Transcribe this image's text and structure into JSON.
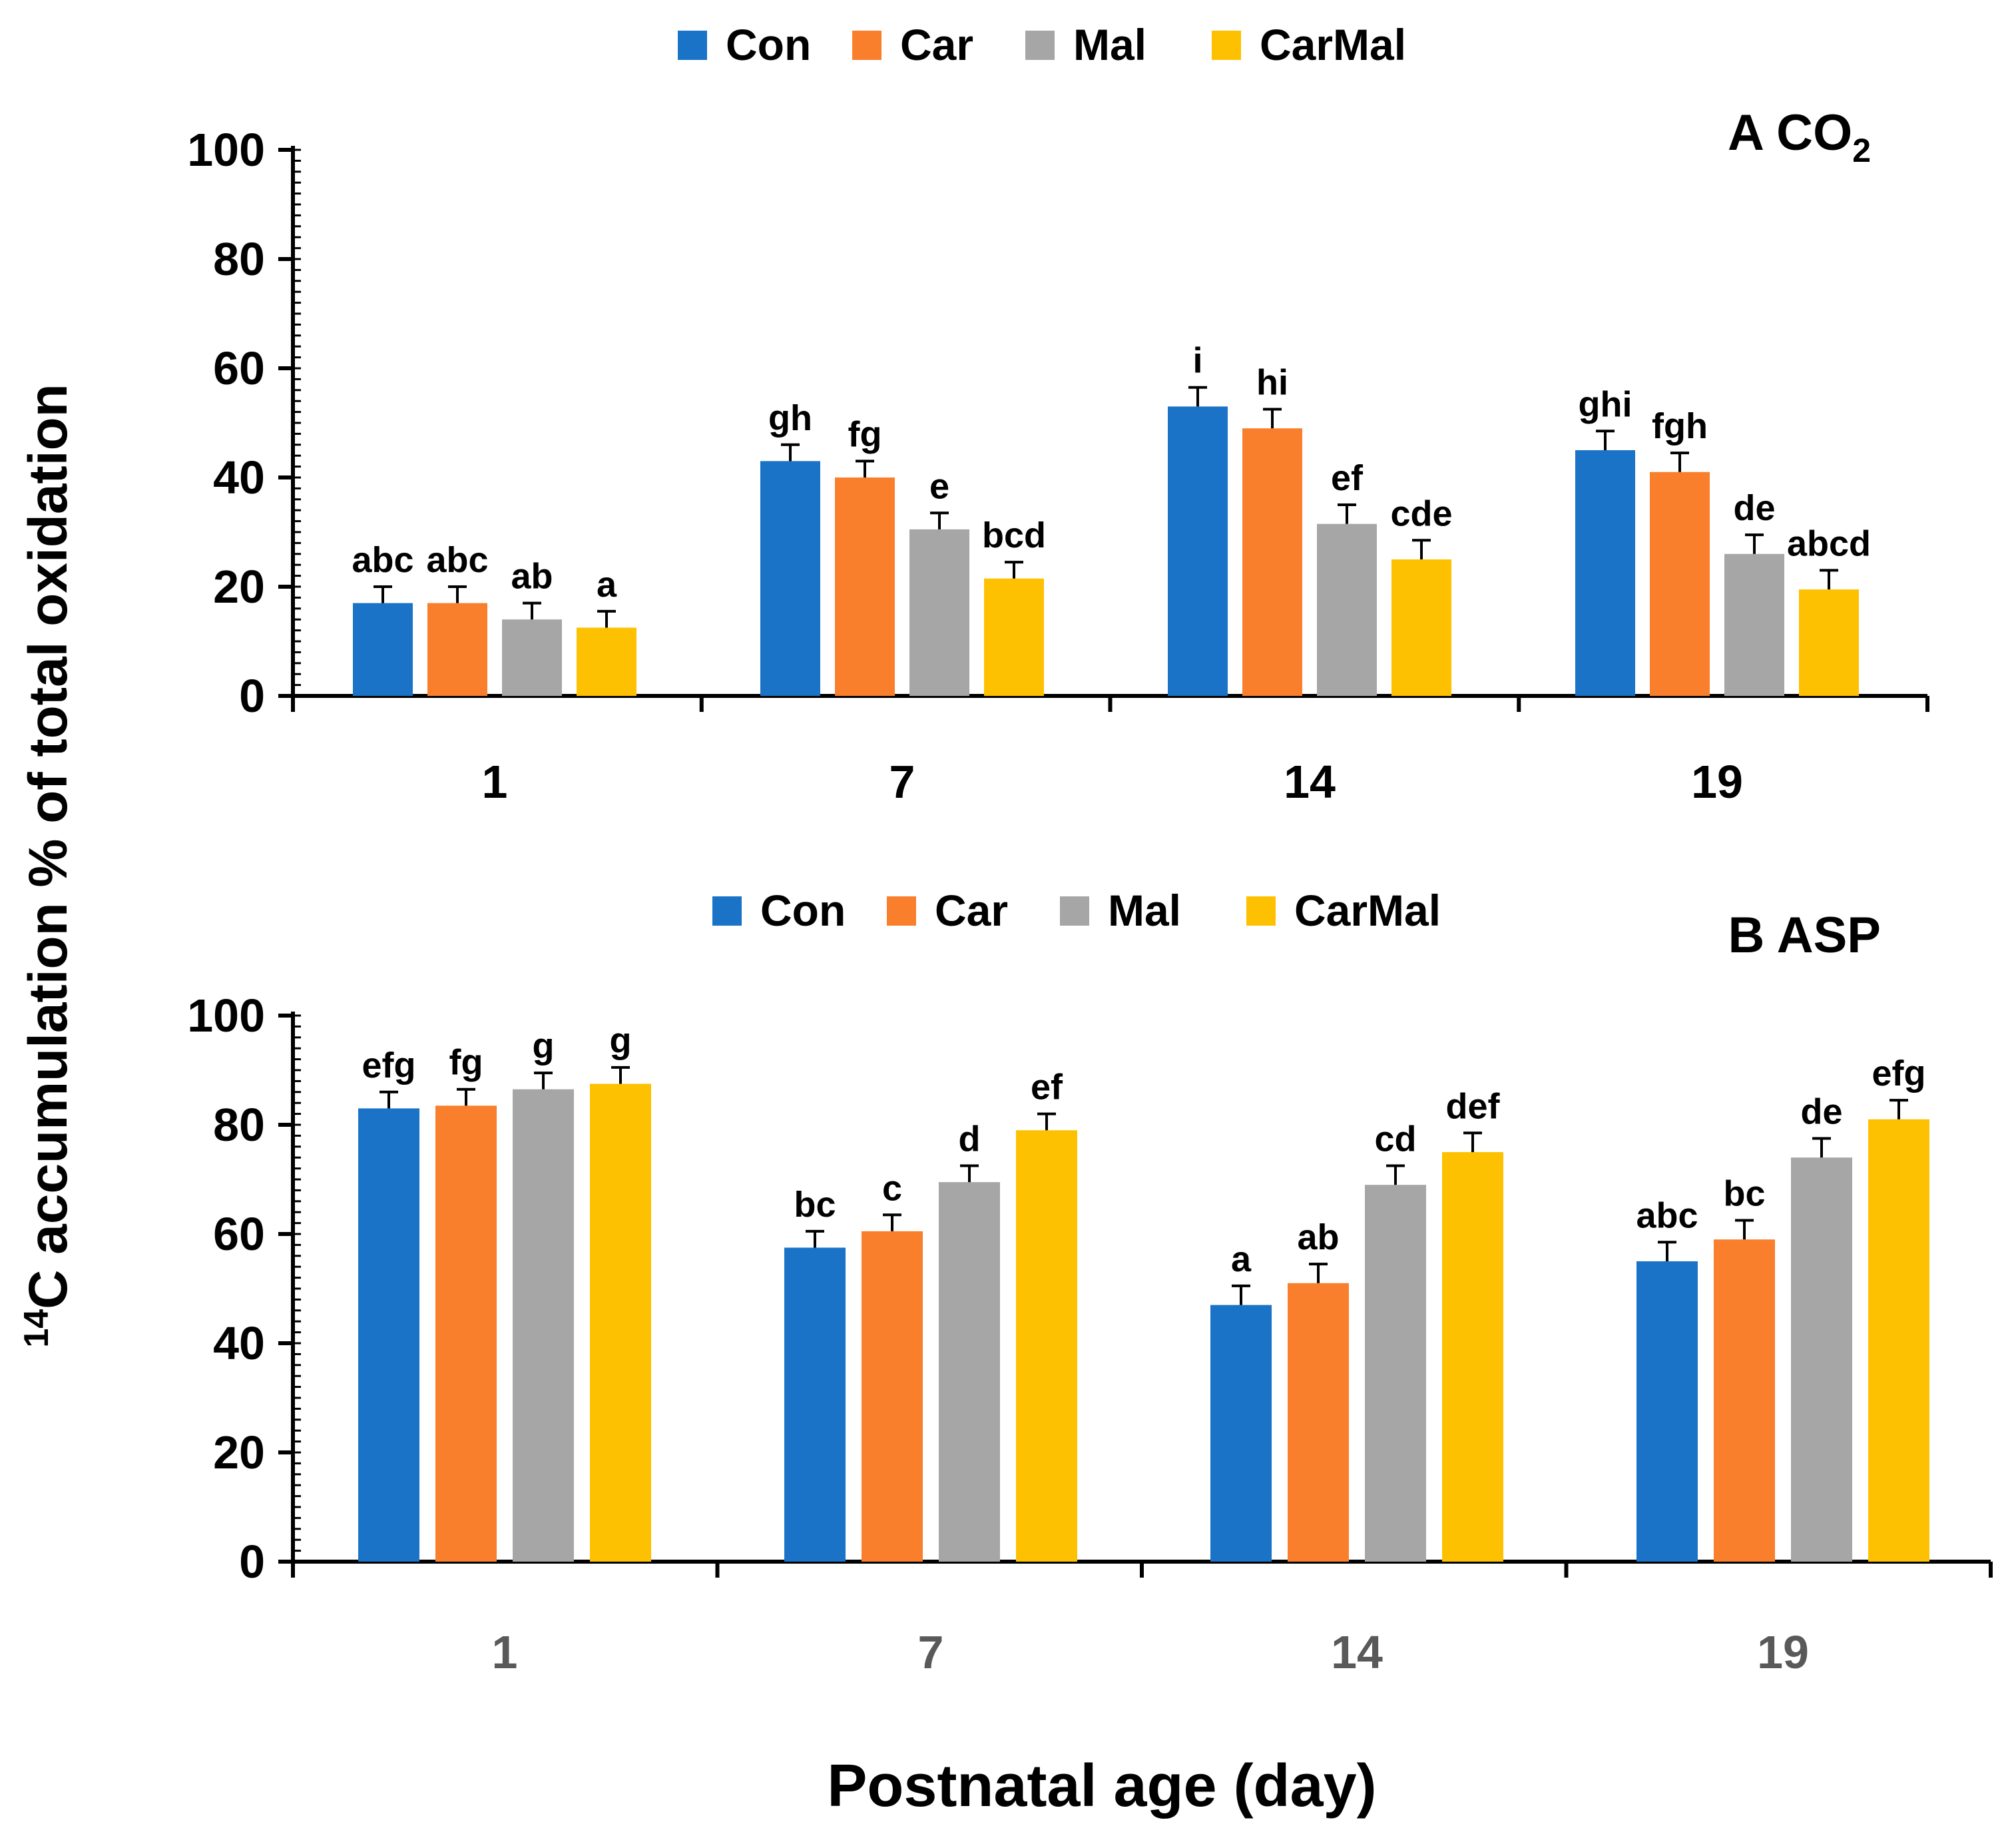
{
  "figure": {
    "ylabel_sup": "14",
    "ylabel_main": "C accumulation % of total oxidation",
    "xlabel": "Postnatal age (day)"
  },
  "chart_data": [
    {
      "type": "bar",
      "title": "A CO",
      "title_subscript": "2",
      "categories": [
        "1",
        "7",
        "14",
        "19"
      ],
      "ylim": [
        0,
        100
      ],
      "yticks": [
        0,
        20,
        40,
        60,
        80,
        100
      ],
      "legend": [
        "Con",
        "Car",
        "Mal",
        "CarMal"
      ],
      "colors": [
        "#1a73c6",
        "#f97f2c",
        "#a6a6a6",
        "#fdc101"
      ],
      "series": [
        {
          "name": "Con",
          "values": [
            17,
            43,
            53,
            45
          ],
          "errors": [
            3,
            3,
            3.5,
            3.5
          ],
          "labels": [
            "abc",
            "gh",
            "i",
            "ghi"
          ]
        },
        {
          "name": "Car",
          "values": [
            17,
            40,
            49,
            41
          ],
          "errors": [
            3,
            3,
            3.5,
            3.5
          ],
          "labels": [
            "abc",
            "fg",
            "hi",
            "fgh"
          ]
        },
        {
          "name": "Mal",
          "values": [
            14,
            30.5,
            31.5,
            26
          ],
          "errors": [
            3,
            3,
            3.5,
            3.5
          ],
          "labels": [
            "ab",
            "e",
            "ef",
            "de"
          ]
        },
        {
          "name": "CarMal",
          "values": [
            12.5,
            21.5,
            25,
            19.5
          ],
          "errors": [
            3,
            3,
            3.5,
            3.5
          ],
          "labels": [
            "a",
            "bcd",
            "cde",
            "abcd"
          ]
        }
      ]
    },
    {
      "type": "bar",
      "title": "B ASP",
      "categories": [
        "1",
        "7",
        "14",
        "19"
      ],
      "ylim": [
        0,
        100
      ],
      "yticks": [
        0,
        20,
        40,
        60,
        80,
        100
      ],
      "legend": [
        "Con",
        "Car",
        "Mal",
        "CarMal"
      ],
      "colors": [
        "#1a73c6",
        "#f97f2c",
        "#a6a6a6",
        "#fdc101"
      ],
      "series": [
        {
          "name": "Con",
          "values": [
            83,
            57.5,
            47,
            55
          ],
          "errors": [
            3,
            3,
            3.5,
            3.5
          ],
          "labels": [
            "efg",
            "bc",
            "a",
            "abc"
          ]
        },
        {
          "name": "Car",
          "values": [
            83.5,
            60.5,
            51,
            59
          ],
          "errors": [
            3,
            3,
            3.5,
            3.5
          ],
          "labels": [
            "fg",
            "c",
            "ab",
            "bc"
          ]
        },
        {
          "name": "Mal",
          "values": [
            86.5,
            69.5,
            69,
            74
          ],
          "errors": [
            3,
            3,
            3.5,
            3.5
          ],
          "labels": [
            "g",
            "d",
            "cd",
            "de"
          ]
        },
        {
          "name": "CarMal",
          "values": [
            87.5,
            79,
            75,
            81
          ],
          "errors": [
            3,
            3,
            3.5,
            3.5
          ],
          "labels": [
            "g",
            "ef",
            "def",
            "efg"
          ]
        }
      ]
    }
  ]
}
